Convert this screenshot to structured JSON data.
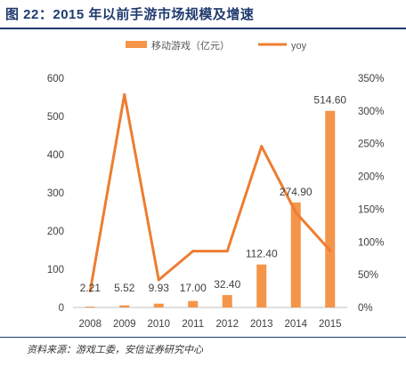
{
  "figure": {
    "title": "图 22：2015 年以前手游市场规模及增速",
    "source": "资料来源：游戏工委，安信证券研究中心"
  },
  "chart_data": {
    "type": "bar",
    "categories": [
      "2008",
      "2009",
      "2010",
      "2011",
      "2012",
      "2013",
      "2014",
      "2015"
    ],
    "series": [
      {
        "name": "移动游戏（亿元）",
        "type": "bar",
        "axis": "left",
        "color": "#f4954a",
        "values": [
          2.21,
          5.52,
          9.93,
          17.0,
          32.4,
          112.4,
          274.9,
          514.6
        ],
        "data_labels": [
          "2.21",
          "5.52",
          "9.93",
          "17.00",
          "32.40",
          "112.40",
          "274.90",
          "514.60"
        ]
      },
      {
        "name": "yoy",
        "type": "line",
        "axis": "right",
        "color": "#ee7d31",
        "values": [
          0.25,
          3.25,
          0.42,
          0.86,
          0.86,
          2.46,
          1.45,
          0.87
        ]
      }
    ],
    "y_left": {
      "min": 0,
      "max": 600,
      "ticks": [
        0,
        100,
        200,
        300,
        400,
        500,
        600
      ],
      "tick_labels": [
        "0",
        "100",
        "200",
        "300",
        "400",
        "500",
        "600"
      ]
    },
    "y_right": {
      "min": 0,
      "max": 3.5,
      "ticks": [
        0,
        0.5,
        1.0,
        1.5,
        2.0,
        2.5,
        3.0,
        3.5
      ],
      "tick_labels": [
        "0%",
        "50%",
        "100%",
        "150%",
        "200%",
        "250%",
        "300%",
        "350%"
      ]
    },
    "grid": false,
    "legend_position": "top-center"
  }
}
